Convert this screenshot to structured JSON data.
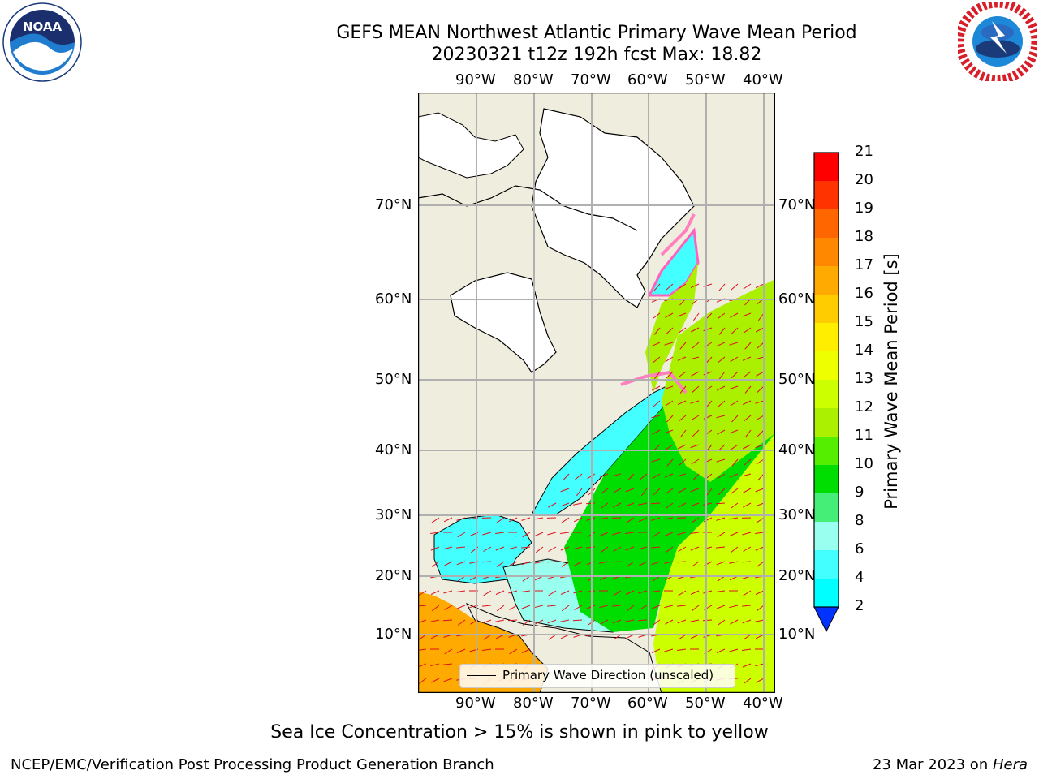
{
  "title": {
    "line1": "GEFS MEAN Northwest Atlantic Primary Wave Mean Period",
    "line2": "20230321 t12z 192h fcst   Max: 18.82"
  },
  "map": {
    "lon_ticks": [
      "90°W",
      "80°W",
      "70°W",
      "60°W",
      "50°W",
      "40°W"
    ],
    "lat_ticks": [
      "70°N",
      "60°N",
      "50°N",
      "40°N",
      "30°N",
      "20°N",
      "10°N"
    ],
    "legend_label": "Primary Wave Direction (unscaled)",
    "land_color": "#efedde",
    "ice_color": "#ff7fbf",
    "arrow_color": "#e0101e"
  },
  "colorbar": {
    "label": "Primary Wave Mean Period [s]",
    "ticks": [
      "21",
      "20",
      "19",
      "18",
      "17",
      "16",
      "15",
      "14",
      "13",
      "12",
      "11",
      "10",
      "9",
      "8",
      "6",
      "4",
      "2"
    ],
    "colors": [
      "#ff0000",
      "#ff3300",
      "#ff6600",
      "#ff8800",
      "#ffaa00",
      "#ffcc00",
      "#ffee00",
      "#eeff00",
      "#ccff00",
      "#aaf000",
      "#55ee00",
      "#00dd00",
      "#44ee77",
      "#99ffee",
      "#44ffff",
      "#00ffff",
      "#0099ff",
      "#0033ff"
    ]
  },
  "logos": {
    "left": "NOAA",
    "right": "NATIONAL WEATHER SERVICE"
  },
  "note": "Sea Ice Concentration > 15% is shown in pink to yellow",
  "footer": {
    "left": "NCEP/EMC/Verification Post Processing Product Generation Branch",
    "right_date": "23 Mar 2023 on ",
    "right_host": "Hera"
  }
}
